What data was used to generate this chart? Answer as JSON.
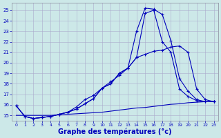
{
  "background_color": "#cce8e8",
  "grid_color": "#aaaacc",
  "line_color": "#0000bb",
  "xlabel": "Graphe des températures (°c)",
  "xlabel_fontsize": 7,
  "ylim": [
    14.5,
    25.7
  ],
  "xlim": [
    -0.5,
    23.5
  ],
  "yticks": [
    15,
    16,
    17,
    18,
    19,
    20,
    21,
    22,
    23,
    24,
    25
  ],
  "xticks": [
    0,
    1,
    2,
    3,
    4,
    5,
    6,
    7,
    8,
    9,
    10,
    11,
    12,
    13,
    14,
    15,
    16,
    17,
    18,
    19,
    20,
    21,
    22,
    23
  ],
  "line1_x": [
    0,
    1,
    2,
    3,
    4,
    5,
    6,
    7,
    8,
    9,
    10,
    11,
    12,
    13,
    14,
    15,
    16,
    17,
    18,
    19,
    20,
    21,
    22,
    23
  ],
  "line1_y": [
    15.9,
    14.9,
    14.7,
    14.8,
    14.9,
    15.1,
    15.3,
    15.6,
    16.1,
    16.6,
    17.6,
    18.0,
    19.0,
    19.5,
    23.0,
    25.2,
    25.1,
    24.6,
    22.1,
    18.5,
    17.3,
    16.5,
    16.3,
    16.3
  ],
  "line2_x": [
    0,
    1,
    2,
    3,
    4,
    5,
    6,
    7,
    8,
    9,
    10,
    11,
    12,
    13,
    14,
    15,
    16,
    17,
    18,
    19,
    20,
    21,
    22,
    23
  ],
  "line2_y": [
    15.9,
    14.9,
    14.7,
    14.8,
    14.9,
    15.1,
    15.3,
    15.6,
    16.1,
    16.6,
    17.6,
    18.0,
    19.0,
    19.5,
    20.5,
    24.7,
    25.0,
    22.0,
    21.0,
    17.5,
    16.8,
    16.4,
    16.3,
    16.3
  ],
  "line3_x": [
    0,
    1,
    2,
    3,
    4,
    5,
    6,
    7,
    8,
    9,
    10,
    11,
    12,
    13,
    14,
    15,
    16,
    17,
    18,
    19,
    20,
    21,
    22,
    23
  ],
  "line3_y": [
    15.9,
    14.9,
    14.7,
    14.8,
    14.9,
    15.1,
    15.3,
    15.8,
    16.5,
    16.9,
    17.6,
    18.2,
    18.8,
    19.5,
    20.5,
    20.8,
    21.1,
    21.2,
    21.5,
    21.6,
    21.0,
    17.5,
    16.5,
    16.3
  ],
  "line4_x": [
    0,
    1,
    2,
    3,
    4,
    5,
    6,
    7,
    8,
    9,
    10,
    11,
    12,
    13,
    14,
    15,
    16,
    17,
    18,
    19,
    20,
    21,
    22,
    23
  ],
  "line4_y": [
    15.0,
    15.0,
    15.0,
    15.0,
    15.0,
    15.05,
    15.1,
    15.15,
    15.2,
    15.25,
    15.3,
    15.4,
    15.5,
    15.6,
    15.7,
    15.75,
    15.85,
    15.95,
    16.05,
    16.1,
    16.2,
    16.25,
    16.3,
    16.3
  ]
}
